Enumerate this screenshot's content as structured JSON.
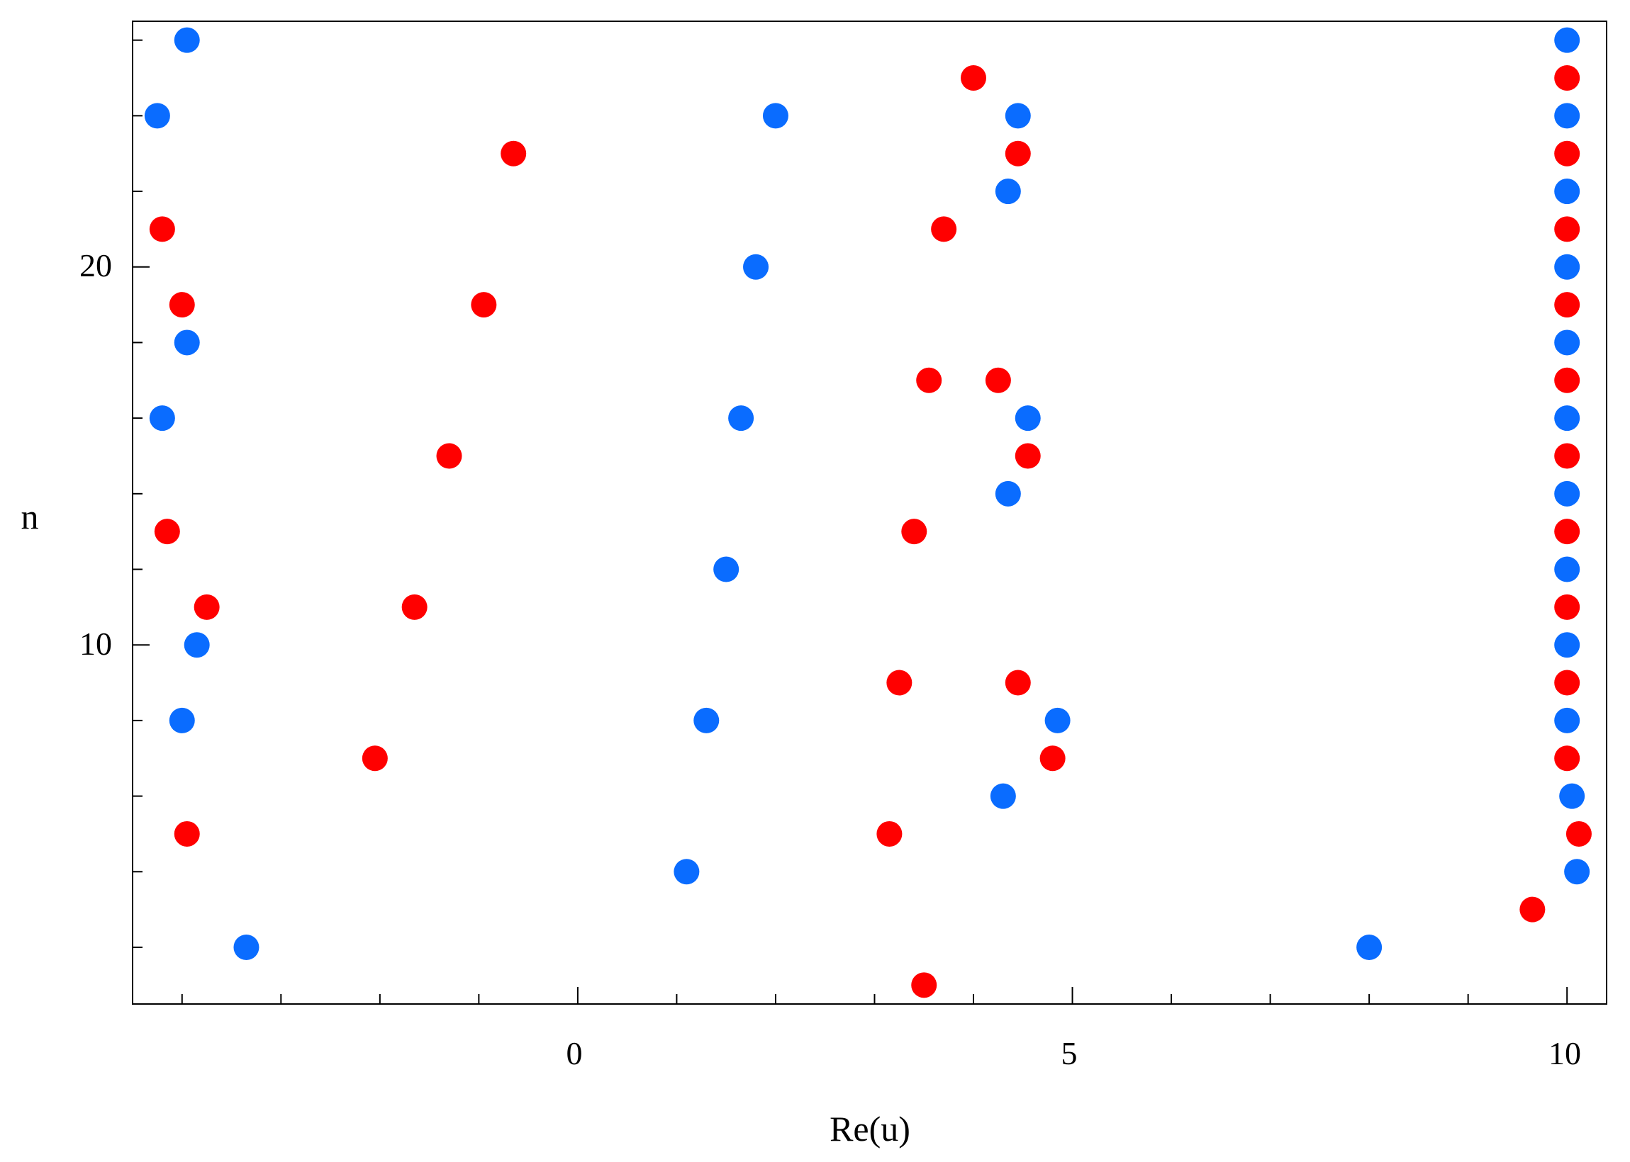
{
  "chart_data": {
    "type": "scatter",
    "title": "",
    "xlabel": "Re(u)",
    "ylabel": "n",
    "xlim": [
      -4.5,
      10.4
    ],
    "ylim": [
      0.5,
      26.5
    ],
    "x_tick_labels": [
      "0",
      "5",
      "10"
    ],
    "y_tick_labels": [
      "10",
      "20"
    ],
    "grid": false,
    "legend": "none",
    "series": [
      {
        "color": "#0a6cff",
        "points": [
          [
            8.0,
            2
          ],
          [
            10.1,
            4
          ],
          [
            10.05,
            6
          ],
          [
            10.0,
            8
          ],
          [
            10.0,
            10
          ],
          [
            10.0,
            12
          ],
          [
            10.0,
            14
          ],
          [
            10.0,
            16
          ],
          [
            10.0,
            18
          ],
          [
            10.0,
            20
          ],
          [
            10.0,
            22
          ],
          [
            10.0,
            24
          ],
          [
            10.0,
            26
          ],
          [
            -3.35,
            2
          ],
          [
            1.1,
            4
          ],
          [
            4.3,
            6
          ],
          [
            -4.0,
            8
          ],
          [
            1.3,
            8
          ],
          [
            4.85,
            8
          ],
          [
            -3.85,
            10
          ],
          [
            1.5,
            12
          ],
          [
            4.35,
            14
          ],
          [
            -4.2,
            16
          ],
          [
            1.65,
            16
          ],
          [
            4.55,
            16
          ],
          [
            -3.95,
            18
          ],
          [
            1.8,
            20
          ],
          [
            4.35,
            22
          ],
          [
            -4.25,
            24
          ],
          [
            2.0,
            24
          ],
          [
            4.45,
            24
          ],
          [
            -3.95,
            26
          ]
        ]
      },
      {
        "color": "#ff0000",
        "points": [
          [
            3.5,
            1
          ],
          [
            9.65,
            3
          ],
          [
            10.12,
            5
          ],
          [
            10.0,
            7
          ],
          [
            10.0,
            9
          ],
          [
            10.0,
            11
          ],
          [
            10.0,
            13
          ],
          [
            10.0,
            15
          ],
          [
            10.0,
            17
          ],
          [
            10.0,
            19
          ],
          [
            10.0,
            21
          ],
          [
            10.0,
            23
          ],
          [
            10.0,
            25
          ],
          [
            -3.95,
            5
          ],
          [
            3.15,
            5
          ],
          [
            -2.05,
            7
          ],
          [
            4.8,
            7
          ],
          [
            3.25,
            9
          ],
          [
            4.45,
            9
          ],
          [
            -3.75,
            11
          ],
          [
            -1.65,
            11
          ],
          [
            -4.15,
            13
          ],
          [
            3.4,
            13
          ],
          [
            -1.3,
            15
          ],
          [
            4.55,
            15
          ],
          [
            3.55,
            17
          ],
          [
            4.25,
            17
          ],
          [
            -4.0,
            19
          ],
          [
            -0.95,
            19
          ],
          [
            -4.2,
            21
          ],
          [
            3.7,
            21
          ],
          [
            -0.65,
            23
          ],
          [
            4.45,
            23
          ],
          [
            4.0,
            25
          ]
        ]
      }
    ]
  }
}
